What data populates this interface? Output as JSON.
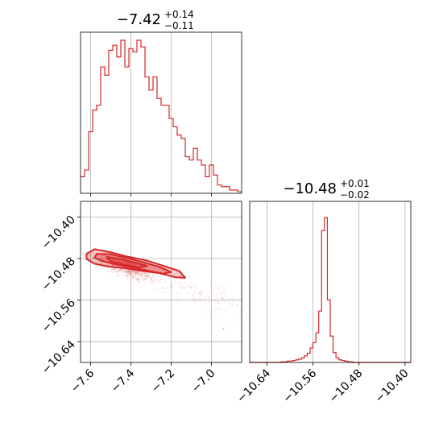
{
  "chart_data": [
    {
      "type": "histogram",
      "panel": "marginal-x",
      "title": {
        "main": "−7.42",
        "sup": "+0.14",
        "sub": "−0.11"
      },
      "xlim": [
        -7.65,
        -6.85
      ],
      "grid": true,
      "color": "#d62728",
      "bin_edges_start": -7.65,
      "bin_width": 0.02,
      "counts": [
        10,
        14,
        37,
        50,
        53,
        76,
        71,
        86,
        89,
        82,
        92,
        76,
        87,
        85,
        92,
        88,
        70,
        62,
        70,
        57,
        53,
        53,
        45,
        40,
        35,
        33,
        22,
        20,
        27,
        20,
        17,
        10,
        17,
        11,
        5,
        4,
        4,
        2,
        2,
        1
      ]
    },
    {
      "type": "histogram",
      "panel": "marginal-y",
      "title": {
        "main": "−10.48",
        "sup": "+0.01",
        "sub": "−0.02"
      },
      "xlim": [
        -10.67,
        -10.39
      ],
      "xticks": [
        "−10.64",
        "−10.56",
        "−10.48",
        "−10.40"
      ],
      "grid": true,
      "color": "#d62728",
      "bin_edges_start": -10.67,
      "bin_width": 0.005,
      "counts": [
        0,
        0,
        0,
        0,
        0,
        0,
        0,
        0,
        0,
        0,
        0,
        1,
        1,
        2,
        2,
        3,
        4,
        5,
        7,
        10,
        14,
        22,
        30,
        45,
        78,
        200,
        220,
        95,
        40,
        15,
        7,
        4,
        3,
        2,
        1,
        1,
        0,
        0,
        0,
        0,
        0,
        0,
        0,
        0,
        0,
        0,
        0,
        0,
        0,
        0,
        0,
        0,
        0,
        0,
        0,
        0
      ]
    },
    {
      "type": "scatter",
      "panel": "joint",
      "xlim": [
        -7.65,
        -6.85
      ],
      "ylim": [
        -10.68,
        -10.37
      ],
      "xticks": [
        "−7.6",
        "−7.4",
        "−7.2",
        "−7.0"
      ],
      "yticks": [
        "−10.40",
        "−10.48",
        "−10.56",
        "−10.64"
      ],
      "grid": true,
      "color": "#d62728",
      "trend": {
        "x0": -7.6,
        "y0": -10.475,
        "slope": -0.13
      },
      "contour_levels": [
        {
          "points": [
            [
              -7.62,
              -10.471
            ],
            [
              -7.58,
              -10.462
            ],
            [
              -7.5,
              -10.468
            ],
            [
              -7.42,
              -10.476
            ],
            [
              -7.32,
              -10.484
            ],
            [
              -7.24,
              -10.494
            ],
            [
              -7.16,
              -10.504
            ],
            [
              -7.13,
              -10.517
            ],
            [
              -7.18,
              -10.516
            ],
            [
              -7.26,
              -10.508
            ],
            [
              -7.34,
              -10.504
            ],
            [
              -7.44,
              -10.498
            ],
            [
              -7.52,
              -10.495
            ],
            [
              -7.58,
              -10.49
            ],
            [
              -7.62,
              -10.481
            ]
          ]
        },
        {
          "points": [
            [
              -7.57,
              -10.471
            ],
            [
              -7.5,
              -10.472
            ],
            [
              -7.42,
              -10.479
            ],
            [
              -7.34,
              -10.487
            ],
            [
              -7.26,
              -10.496
            ],
            [
              -7.2,
              -10.506
            ],
            [
              -7.24,
              -10.509
            ],
            [
              -7.32,
              -10.503
            ],
            [
              -7.4,
              -10.497
            ],
            [
              -7.48,
              -10.491
            ],
            [
              -7.55,
              -10.484
            ],
            [
              -7.58,
              -10.478
            ]
          ]
        },
        {
          "points": [
            [
              -7.52,
              -10.477
            ],
            [
              -7.45,
              -10.481
            ],
            [
              -7.38,
              -10.488
            ],
            [
              -7.32,
              -10.494
            ],
            [
              -7.36,
              -10.497
            ],
            [
              -7.43,
              -10.492
            ],
            [
              -7.5,
              -10.486
            ]
          ]
        }
      ]
    }
  ]
}
